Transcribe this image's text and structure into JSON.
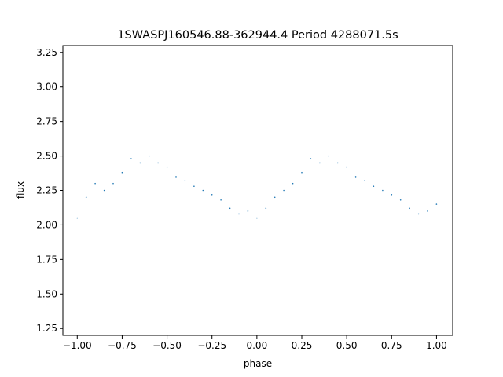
{
  "chart_data": {
    "type": "scatter",
    "title": "1SWASPJ160546.88-362944.4 Period 4288071.5s",
    "xlabel": "phase",
    "ylabel": "flux",
    "xlim": [
      -1.08,
      1.09
    ],
    "ylim": [
      1.2,
      3.3
    ],
    "xticks": [
      -1.0,
      -0.75,
      -0.5,
      -0.25,
      0.0,
      0.25,
      0.5,
      0.75,
      1.0
    ],
    "xtick_labels": [
      "−1.00",
      "−0.75",
      "−0.50",
      "−0.25",
      "0.00",
      "0.25",
      "0.50",
      "0.75",
      "1.00"
    ],
    "yticks": [
      1.25,
      1.5,
      1.75,
      2.0,
      2.25,
      2.5,
      2.75,
      3.0,
      3.25
    ],
    "ytick_labels": [
      "1.25",
      "1.50",
      "1.75",
      "2.00",
      "2.25",
      "2.50",
      "2.75",
      "3.00",
      "3.25"
    ],
    "grid": false,
    "marker_color": "#1f77b4",
    "series": [
      {
        "points": [
          [
            -1.0,
            2.05
          ],
          [
            -0.95,
            2.2
          ],
          [
            -0.9,
            2.3
          ],
          [
            -0.85,
            2.25
          ],
          [
            -0.8,
            2.3
          ],
          [
            -0.75,
            2.38
          ],
          [
            -0.7,
            2.48
          ],
          [
            -0.65,
            2.45
          ],
          [
            -0.6,
            2.5
          ],
          [
            -0.55,
            2.45
          ],
          [
            -0.5,
            2.42
          ],
          [
            -0.45,
            2.35
          ],
          [
            -0.4,
            2.32
          ],
          [
            -0.35,
            2.28
          ],
          [
            -0.3,
            2.25
          ],
          [
            -0.25,
            2.22
          ],
          [
            -0.2,
            2.18
          ],
          [
            -0.15,
            2.12
          ],
          [
            -0.1,
            2.08
          ],
          [
            -0.05,
            2.1
          ],
          [
            0.0,
            2.05
          ],
          [
            0.05,
            2.12
          ],
          [
            0.1,
            2.2
          ],
          [
            0.15,
            2.25
          ],
          [
            0.2,
            2.3
          ],
          [
            0.25,
            2.38
          ],
          [
            0.3,
            2.48
          ],
          [
            0.35,
            2.45
          ],
          [
            0.4,
            2.5
          ],
          [
            0.45,
            2.45
          ],
          [
            0.5,
            2.42
          ],
          [
            0.55,
            2.35
          ],
          [
            0.6,
            2.32
          ],
          [
            0.65,
            2.28
          ],
          [
            0.7,
            2.25
          ],
          [
            0.75,
            2.22
          ],
          [
            0.8,
            2.18
          ],
          [
            0.85,
            2.12
          ],
          [
            0.9,
            2.08
          ],
          [
            0.95,
            2.1
          ],
          [
            1.0,
            2.15
          ]
        ]
      }
    ]
  }
}
